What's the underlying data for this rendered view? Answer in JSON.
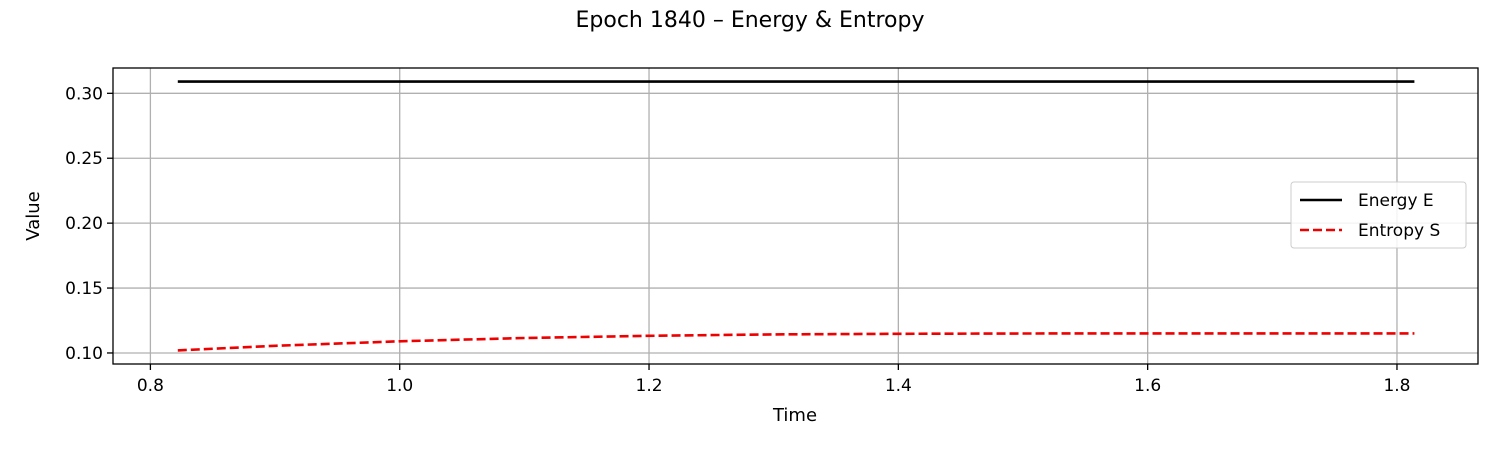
{
  "chart_data": {
    "type": "line",
    "title": "Epoch 1840 – Energy & Entropy",
    "xlabel": "Time",
    "ylabel": "Value",
    "xlim": [
      0.77,
      1.865
    ],
    "ylim": [
      0.0915,
      0.3195
    ],
    "xticks": [
      0.8,
      1.0,
      1.2,
      1.4,
      1.6,
      1.8
    ],
    "xtick_labels": [
      "0.8",
      "1.0",
      "1.2",
      "1.4",
      "1.6",
      "1.8"
    ],
    "yticks": [
      0.1,
      0.15,
      0.2,
      0.25,
      0.3
    ],
    "ytick_labels": [
      "0.10",
      "0.15",
      "0.20",
      "0.25",
      "0.30"
    ],
    "grid": true,
    "legend_position": "center-right",
    "series": [
      {
        "name": "Energy E",
        "color": "#000000",
        "style": "solid",
        "x": [
          0.822,
          1.0,
          1.2,
          1.4,
          1.6,
          1.814
        ],
        "y": [
          0.309,
          0.309,
          0.309,
          0.309,
          0.309,
          0.309
        ]
      },
      {
        "name": "Entropy S",
        "color": "#ee0000",
        "style": "dashed",
        "x": [
          0.822,
          0.9,
          1.0,
          1.1,
          1.2,
          1.3,
          1.4,
          1.5,
          1.6,
          1.7,
          1.814
        ],
        "y": [
          0.102,
          0.1055,
          0.109,
          0.1115,
          0.1132,
          0.1143,
          0.1148,
          0.115,
          0.1151,
          0.1151,
          0.1151
        ]
      }
    ]
  }
}
